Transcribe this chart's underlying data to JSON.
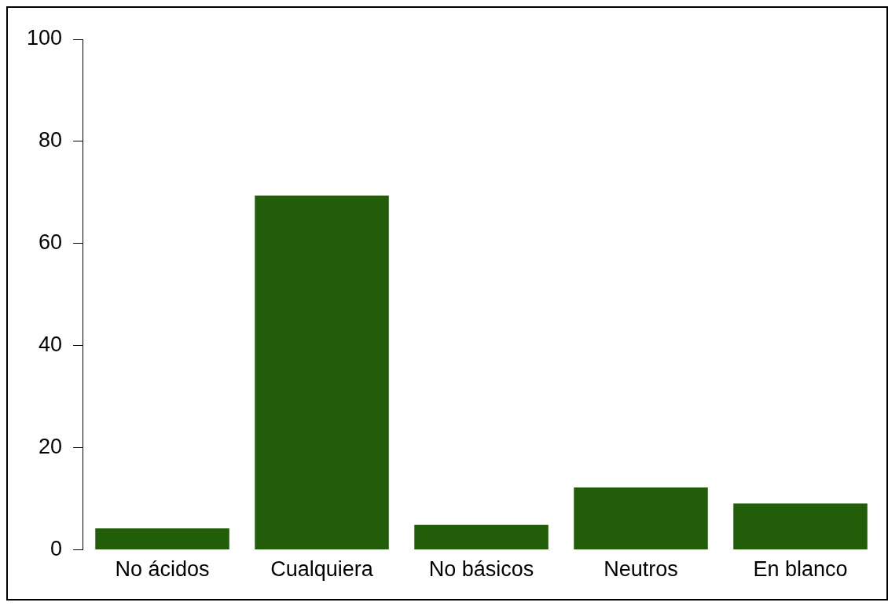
{
  "chart_data": {
    "type": "bar",
    "categories": [
      "No ácidos",
      "Cualquiera",
      "No básicos",
      "Neutros",
      "En blanco"
    ],
    "values": [
      4.2,
      69.4,
      4.9,
      12.2,
      9.1
    ],
    "color": "#225e0a",
    "ylim": [
      0,
      100
    ],
    "yticks": [
      0,
      20,
      40,
      60,
      80,
      100
    ],
    "grid": false,
    "legend": false
  }
}
